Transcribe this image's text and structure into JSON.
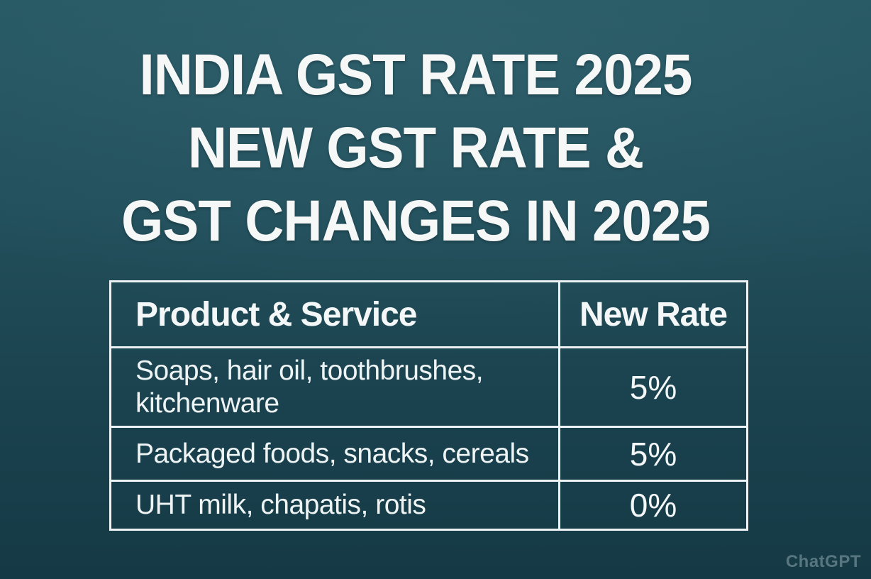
{
  "title": {
    "line1": "INDIA GST RATE 2025",
    "line2": "NEW GST RATE &",
    "line3": "GST CHANGES IN 2025"
  },
  "chart_data": {
    "type": "table",
    "title": "INDIA GST RATE 2025 — NEW GST RATE & GST CHANGES IN 2025",
    "columns": [
      "Product & Service",
      "New Rate"
    ],
    "rows": [
      [
        "Soaps, hair oil, toothbrushes, kitchenware",
        "5%"
      ],
      [
        "Packaged foods, snacks, cereals",
        "5%"
      ],
      [
        "UHT milk, chapatis, rotis",
        "0%"
      ]
    ]
  },
  "watermark": {
    "label": "ChatGPT"
  },
  "colors": {
    "background_top": "#265864",
    "background_bottom": "#153a46",
    "table_border": "#edf3f4",
    "text": "#f6f8f8",
    "watermark_text": "#587680"
  }
}
